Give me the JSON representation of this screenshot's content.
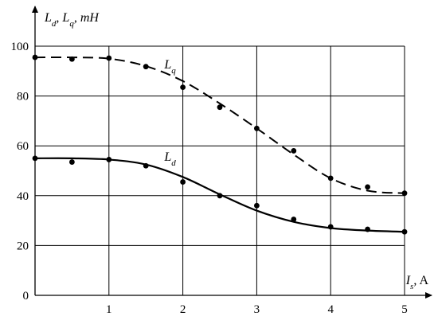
{
  "chart_data": {
    "type": "scatter",
    "title": "",
    "xlabel": "I_s, A",
    "ylabel": "L_d, L_q, mH",
    "xlim": [
      0,
      5
    ],
    "ylim": [
      0,
      100
    ],
    "x_ticks": [
      0,
      1,
      2,
      3,
      4,
      5
    ],
    "y_ticks": [
      0,
      20,
      40,
      60,
      80,
      100
    ],
    "grid": true,
    "series": [
      {
        "name": "Lq",
        "line_style": "dashed",
        "points_x": [
          0,
          0.5,
          1,
          1.5,
          2,
          2.5,
          3,
          3.5,
          4,
          4.5,
          5
        ],
        "points_y": [
          95.5,
          94.8,
          95.2,
          91.8,
          83.5,
          75.5,
          67,
          58,
          47,
          43.5,
          41
        ],
        "curve_x": [
          0,
          0.5,
          1,
          1.5,
          2,
          2.5,
          3,
          3.5,
          4,
          4.5,
          5
        ],
        "curve_y": [
          95.5,
          95.5,
          95,
          92,
          86,
          77,
          67,
          56.5,
          47,
          42,
          41
        ]
      },
      {
        "name": "Ld",
        "line_style": "solid",
        "points_x": [
          0,
          0.5,
          1,
          1.5,
          2,
          2.5,
          3,
          3.5,
          4,
          4.5,
          5
        ],
        "points_y": [
          55,
          53.5,
          54.5,
          52,
          45.5,
          40,
          36,
          30.5,
          27.5,
          26.5,
          25.5
        ],
        "curve_x": [
          0,
          0.5,
          1,
          1.5,
          2,
          2.5,
          3,
          3.5,
          4,
          4.5,
          5
        ],
        "curve_y": [
          55,
          55,
          54.5,
          52.5,
          47.5,
          40.5,
          34,
          29.5,
          27,
          26,
          25.5
        ]
      }
    ],
    "series_labels": [
      {
        "base": "L",
        "sub": "q",
        "x": 1.75,
        "y": 91
      },
      {
        "base": "L",
        "sub": "d",
        "x": 1.75,
        "y": 54
      }
    ],
    "y_axis_label": {
      "parts": [
        {
          "t": "L"
        },
        {
          "t": "d",
          "sub": true
        },
        {
          "t": ", L"
        },
        {
          "t": "q",
          "sub": true
        },
        {
          "t": ", mH"
        }
      ]
    },
    "x_axis_label": {
      "parts": [
        {
          "t": "I"
        },
        {
          "t": "s",
          "sub": true
        },
        {
          "t": ", A",
          "upright": true
        }
      ]
    }
  }
}
